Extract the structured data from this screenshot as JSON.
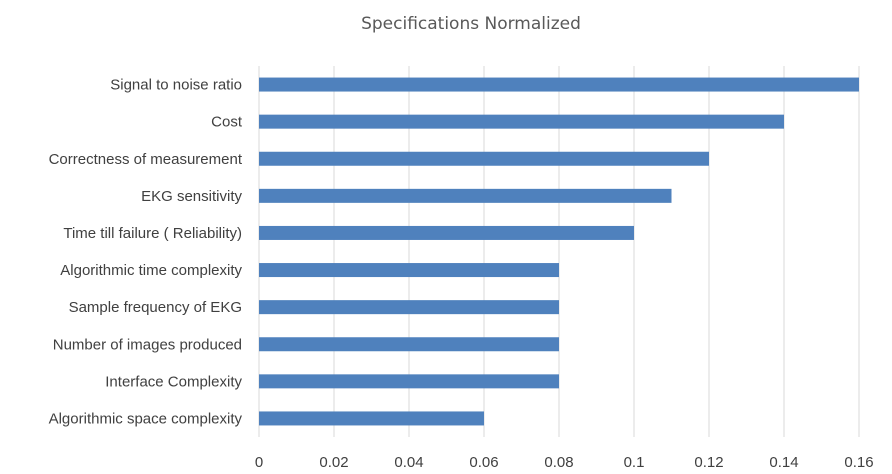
{
  "chart_data": {
    "type": "bar",
    "orientation": "horizontal",
    "title": "Specifications Normalized",
    "xlabel": "",
    "ylabel": "",
    "categories": [
      "Signal to noise ratio",
      "Cost",
      "Correctness of measurement",
      "EKG sensitivity",
      "Time till failure ( Reliability)",
      "Algorithmic time complexity",
      "Sample frequency of EKG",
      "Number of images produced",
      "Interface Complexity",
      "Algorithmic space complexity"
    ],
    "values": [
      0.16,
      0.14,
      0.12,
      0.11,
      0.1,
      0.08,
      0.08,
      0.08,
      0.08,
      0.06
    ],
    "xlim": [
      0,
      0.16
    ],
    "xticks": [
      "0",
      "0.02",
      "0.04",
      "0.06",
      "0.08",
      "0.1",
      "0.12",
      "0.14",
      "0.16"
    ],
    "grid": true,
    "legend": "none",
    "bar_color": "#4f81bd"
  }
}
